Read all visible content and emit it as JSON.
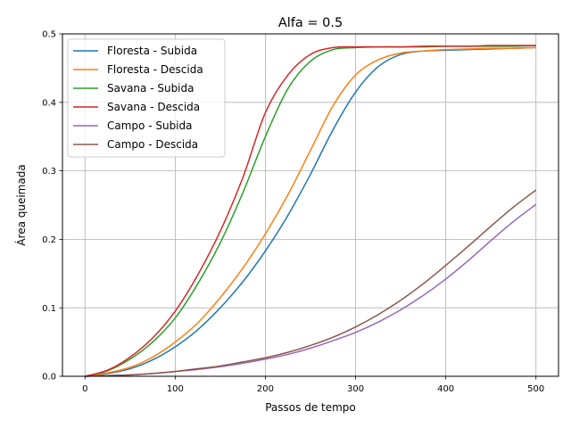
{
  "chart_data": {
    "type": "line",
    "title": "Alfa = 0.5",
    "xlabel": "Passos de tempo",
    "ylabel": "Área queimada",
    "xlim": [
      -25,
      525
    ],
    "ylim": [
      0,
      0.5
    ],
    "xticks": [
      0,
      100,
      200,
      300,
      400,
      500
    ],
    "yticks": [
      0.0,
      0.1,
      0.2,
      0.3,
      0.4,
      0.5
    ],
    "xtick_labels": [
      "0",
      "100",
      "200",
      "300",
      "400",
      "500"
    ],
    "ytick_labels": [
      "0.0",
      "0.1",
      "0.2",
      "0.3",
      "0.4",
      "0.5"
    ],
    "grid": true,
    "legend_position": "top-left",
    "x": [
      0,
      25,
      50,
      75,
      100,
      125,
      150,
      175,
      200,
      225,
      250,
      275,
      300,
      325,
      350,
      375,
      400,
      425,
      450,
      475,
      500
    ],
    "series": [
      {
        "name": "Floresta - Subida",
        "color": "#1f77b4",
        "values": [
          0.0,
          0.004,
          0.011,
          0.024,
          0.043,
          0.068,
          0.1,
          0.138,
          0.183,
          0.235,
          0.295,
          0.36,
          0.415,
          0.452,
          0.47,
          0.475,
          0.476,
          0.477,
          0.478,
          0.479,
          0.48
        ]
      },
      {
        "name": "Floresta - Descida",
        "color": "#ff7f0e",
        "values": [
          0.0,
          0.005,
          0.013,
          0.028,
          0.05,
          0.078,
          0.115,
          0.158,
          0.208,
          0.265,
          0.33,
          0.395,
          0.44,
          0.462,
          0.472,
          0.475,
          0.477,
          0.478,
          0.479,
          0.479,
          0.48
        ]
      },
      {
        "name": "Savana - Subida",
        "color": "#2ca02c",
        "values": [
          0.0,
          0.008,
          0.025,
          0.05,
          0.085,
          0.135,
          0.195,
          0.268,
          0.35,
          0.42,
          0.46,
          0.477,
          0.48,
          0.481,
          0.481,
          0.481,
          0.482,
          0.482,
          0.482,
          0.482,
          0.483
        ]
      },
      {
        "name": "Savana - Descida",
        "color": "#d62728",
        "values": [
          0.0,
          0.009,
          0.028,
          0.056,
          0.095,
          0.148,
          0.212,
          0.29,
          0.385,
          0.44,
          0.47,
          0.48,
          0.481,
          0.481,
          0.481,
          0.482,
          0.482,
          0.482,
          0.483,
          0.483,
          0.483
        ]
      },
      {
        "name": "Campo - Subida",
        "color": "#9467bd",
        "values": [
          0.0,
          0.001,
          0.002,
          0.004,
          0.007,
          0.01,
          0.014,
          0.019,
          0.025,
          0.032,
          0.041,
          0.052,
          0.064,
          0.079,
          0.097,
          0.118,
          0.142,
          0.169,
          0.198,
          0.226,
          0.251
        ]
      },
      {
        "name": "Campo - Descida",
        "color": "#8c564b",
        "values": [
          0.0,
          0.001,
          0.002,
          0.004,
          0.007,
          0.011,
          0.015,
          0.021,
          0.027,
          0.035,
          0.045,
          0.057,
          0.072,
          0.09,
          0.111,
          0.135,
          0.162,
          0.19,
          0.219,
          0.247,
          0.272
        ]
      }
    ]
  }
}
